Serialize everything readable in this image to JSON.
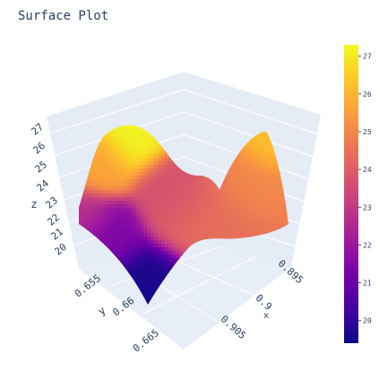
{
  "chart_data": {
    "type": "surface",
    "title": "Surface Plot",
    "colorscale": "plasma",
    "colors": [
      "#0d0887",
      "#46039f",
      "#7201a8",
      "#9c179e",
      "#bd3786",
      "#d8576b",
      "#ed7953",
      "#fb9f3a",
      "#fdca26",
      "#f0f921"
    ],
    "background": "#e5ecf6",
    "x_axis": {
      "label": "x",
      "ticks": [
        "0.895",
        "0.9",
        "0.905"
      ]
    },
    "y_axis": {
      "label": "y",
      "ticks": [
        "0.655",
        "0.66",
        "0.665"
      ]
    },
    "z_axis": {
      "label": "z",
      "ticks": [
        20,
        21,
        22,
        23,
        24,
        25,
        26,
        27
      ]
    },
    "zlim": [
      19.5,
      27.2
    ],
    "colorbar": {
      "ticks": [
        20,
        21,
        22,
        23,
        24,
        25,
        26,
        27
      ],
      "range": [
        19.4,
        27.3
      ]
    }
  }
}
